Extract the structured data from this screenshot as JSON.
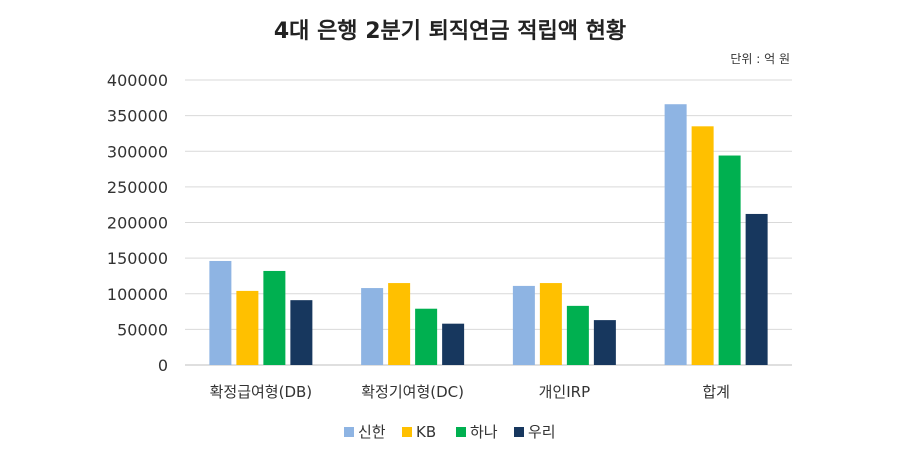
{
  "chart_data": {
    "type": "bar",
    "title": "4대 은행 2분기 퇴직연금  적립액 현황",
    "unit_label": "단위 : 억 원",
    "categories": [
      "확정급여형(DB)",
      "확정기여형(DC)",
      "개인IRP",
      "합계"
    ],
    "series": [
      {
        "name": "신한",
        "color": "#8EB4E3",
        "values": [
          146000,
          108000,
          111000,
          366000
        ]
      },
      {
        "name": "KB",
        "color": "#FFC000",
        "values": [
          104000,
          115000,
          115000,
          335000
        ]
      },
      {
        "name": "하나",
        "color": "#00B050",
        "values": [
          132000,
          79000,
          83000,
          294000
        ]
      },
      {
        "name": "우리",
        "color": "#17375E",
        "values": [
          91000,
          58000,
          63000,
          212000
        ]
      }
    ],
    "ylim": [
      0,
      400000
    ],
    "yticks": [
      0,
      50000,
      100000,
      150000,
      200000,
      250000,
      300000,
      350000,
      400000
    ],
    "grid": true,
    "legend_position": "bottom"
  }
}
